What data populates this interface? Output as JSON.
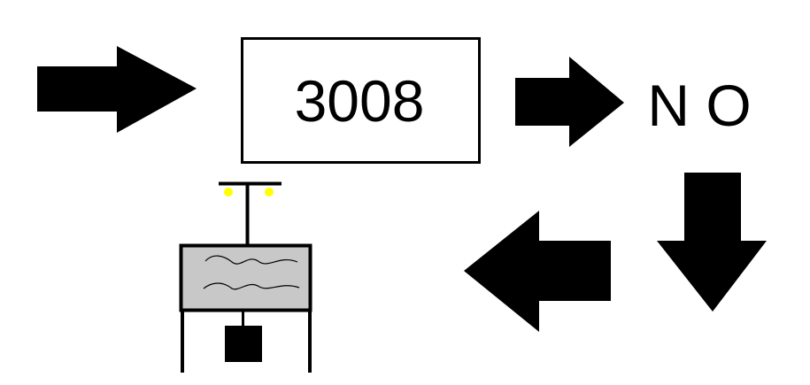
{
  "diagram": {
    "box_label": "3008",
    "decision_label": "N O",
    "icons": {
      "arrow_in": "arrow-right-icon",
      "arrow_to_decision": "arrow-right-icon",
      "arrow_down": "arrow-down-icon",
      "arrow_back": "arrow-left-icon",
      "device": "water-tank-icon"
    },
    "colors": {
      "ink": "#000000",
      "background": "#ffffff",
      "tank_fill": "#c8c8c8",
      "lamp": "#ffff00"
    }
  }
}
